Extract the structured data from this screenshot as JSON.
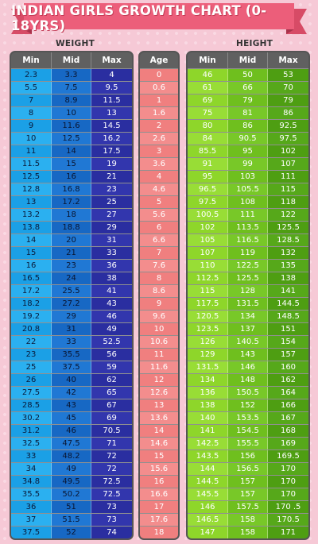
{
  "title": "INDIAN GIRLS GROWTH CHART (0-18YRS)",
  "weight_label": "WEIGHT",
  "height_label": "HEIGHT",
  "colors": {
    "background": "#f6c9d6",
    "ribbon": "#ec5e7a",
    "weight_min": "#1ba0e6",
    "weight_mid": "#1768c4",
    "weight_max": "#2a2ea0",
    "age": "#f07f7f",
    "height_min": "#8ed62a",
    "height_mid": "#6fbf1e",
    "height_max": "#4e9e12"
  },
  "chart_data": {
    "type": "table",
    "title": "INDIAN GIRLS GROWTH CHART (0-18YRS)",
    "weight_headers": [
      "Min",
      "Mid",
      "Max"
    ],
    "age_header": "Age",
    "height_headers": [
      "Min",
      "Mid",
      "Max"
    ],
    "ages": [
      "0",
      "0.6",
      "1",
      "1.6",
      "2",
      "2.6",
      "3",
      "3.6",
      "4",
      "4.6",
      "5",
      "5.6",
      "6",
      "6.6",
      "7",
      "7.6",
      "8",
      "8.6",
      "9",
      "9.6",
      "10",
      "10.6",
      "11",
      "11.6",
      "12",
      "12.6",
      "13",
      "13.6",
      "14",
      "14.6",
      "15",
      "15.6",
      "16",
      "16.6",
      "17",
      "17.6",
      "18"
    ],
    "weight": [
      [
        "2.3",
        "3.3",
        "4"
      ],
      [
        "5.5",
        "7.5",
        "9.5"
      ],
      [
        "7",
        "8.9",
        "11.5"
      ],
      [
        "8",
        "10",
        "13"
      ],
      [
        "9",
        "11.6",
        "14.5"
      ],
      [
        "10",
        "12.5",
        "16.2"
      ],
      [
        "11",
        "14",
        "17.5"
      ],
      [
        "11.5",
        "15",
        "19"
      ],
      [
        "12.5",
        "16",
        "21"
      ],
      [
        "12.8",
        "16.8",
        "23"
      ],
      [
        "13",
        "17.2",
        "25"
      ],
      [
        "13.2",
        "18",
        "27"
      ],
      [
        "13.8",
        "18.8",
        "29"
      ],
      [
        "14",
        "20",
        "31"
      ],
      [
        "15",
        "21",
        "33"
      ],
      [
        "16",
        "23",
        "36"
      ],
      [
        "16.5",
        "24",
        "38"
      ],
      [
        "17.2",
        "25.5",
        "41"
      ],
      [
        "18.2",
        "27.2",
        "43"
      ],
      [
        "19.2",
        "29",
        "46"
      ],
      [
        "20.8",
        "31",
        "49"
      ],
      [
        "22",
        "33",
        "52.5"
      ],
      [
        "23",
        "35.5",
        "56"
      ],
      [
        "25",
        "37.5",
        "59"
      ],
      [
        "26",
        "40",
        "62"
      ],
      [
        "27.5",
        "42",
        "65"
      ],
      [
        "28.5",
        "43",
        "67"
      ],
      [
        "30.2",
        "45",
        "69"
      ],
      [
        "31.2",
        "46",
        "70.5"
      ],
      [
        "32.5",
        "47.5",
        "71"
      ],
      [
        "33",
        "48.2",
        "72"
      ],
      [
        "34",
        "49",
        "72"
      ],
      [
        "34.8",
        "49.5",
        "72.5"
      ],
      [
        "35.5",
        "50.2",
        "72.5"
      ],
      [
        "36",
        "51",
        "73"
      ],
      [
        "37",
        "51.5",
        "73"
      ],
      [
        "37.5",
        "52",
        "74"
      ]
    ],
    "height": [
      [
        "46",
        "50",
        "53"
      ],
      [
        "61",
        "66",
        "70"
      ],
      [
        "69",
        "79",
        "79"
      ],
      [
        "75",
        "81",
        "86"
      ],
      [
        "80",
        "86",
        "92.5"
      ],
      [
        "84",
        "90.5",
        "97.5"
      ],
      [
        "85.5",
        "95",
        "102"
      ],
      [
        "91",
        "99",
        "107"
      ],
      [
        "95",
        "103",
        "111"
      ],
      [
        "96.5",
        "105.5",
        "115"
      ],
      [
        "97.5",
        "108",
        "118"
      ],
      [
        "100.5",
        "111",
        "122"
      ],
      [
        "102",
        "113.5",
        "125.5"
      ],
      [
        "105",
        "116.5",
        "128.5"
      ],
      [
        "107",
        "119",
        "132"
      ],
      [
        "110",
        "122.5",
        "135"
      ],
      [
        "112.5",
        "125.5",
        "138"
      ],
      [
        "115",
        "128",
        "141"
      ],
      [
        "117.5",
        "131.5",
        "144.5"
      ],
      [
        "120.5",
        "134",
        "148.5"
      ],
      [
        "123.5",
        "137",
        "151"
      ],
      [
        "126",
        "140.5",
        "154"
      ],
      [
        "129",
        "143",
        "157"
      ],
      [
        "131.5",
        "146",
        "160"
      ],
      [
        "134",
        "148",
        "162"
      ],
      [
        "136",
        "150.5",
        "164"
      ],
      [
        "138",
        "152",
        "166"
      ],
      [
        "140",
        "153.5",
        "167"
      ],
      [
        "141",
        "154.5",
        "168"
      ],
      [
        "142.5",
        "155.5",
        "169"
      ],
      [
        "143.5",
        "156",
        "169.5"
      ],
      [
        "144",
        "156.5",
        "170"
      ],
      [
        "144.5",
        "157",
        "170"
      ],
      [
        "145.5",
        "157",
        "170"
      ],
      [
        "146",
        "157.5",
        "170 .5"
      ],
      [
        "146.5",
        "158",
        "170.5"
      ],
      [
        "147",
        "158",
        "171"
      ]
    ]
  }
}
